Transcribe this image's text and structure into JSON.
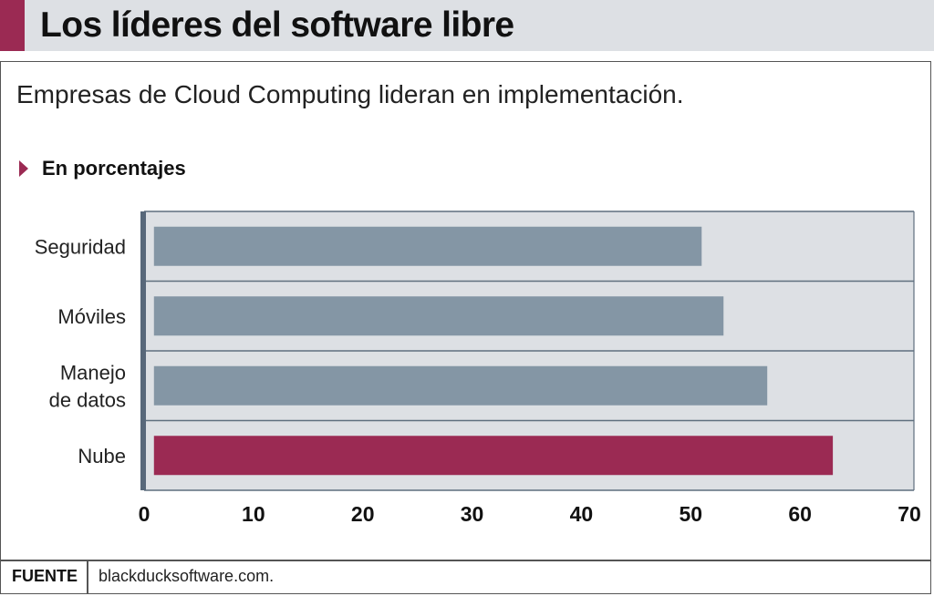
{
  "header": {
    "title": "Los líderes del software libre"
  },
  "subtitle": "Empresas de Cloud Computing lideran en implementación.",
  "units_label": "En porcentajes",
  "footer": {
    "label": "FUENTE",
    "source": "blackducksoftware.com."
  },
  "colors": {
    "accent": "#9b2a53",
    "bar": "#8496a5",
    "plot_background": "#dde0e4",
    "axis": "#58687a"
  },
  "chart_data": {
    "type": "bar",
    "orientation": "horizontal",
    "categories": [
      [
        "Seguridad"
      ],
      [
        "Móviles"
      ],
      [
        "Manejo",
        "de datos"
      ],
      [
        "Nube"
      ]
    ],
    "values": [
      51,
      53,
      57,
      63
    ],
    "highlight_index": 3,
    "xlim": [
      0,
      70
    ],
    "xticks": [
      0,
      10,
      20,
      30,
      40,
      50,
      60,
      70
    ],
    "grid": "horizontal separators"
  }
}
